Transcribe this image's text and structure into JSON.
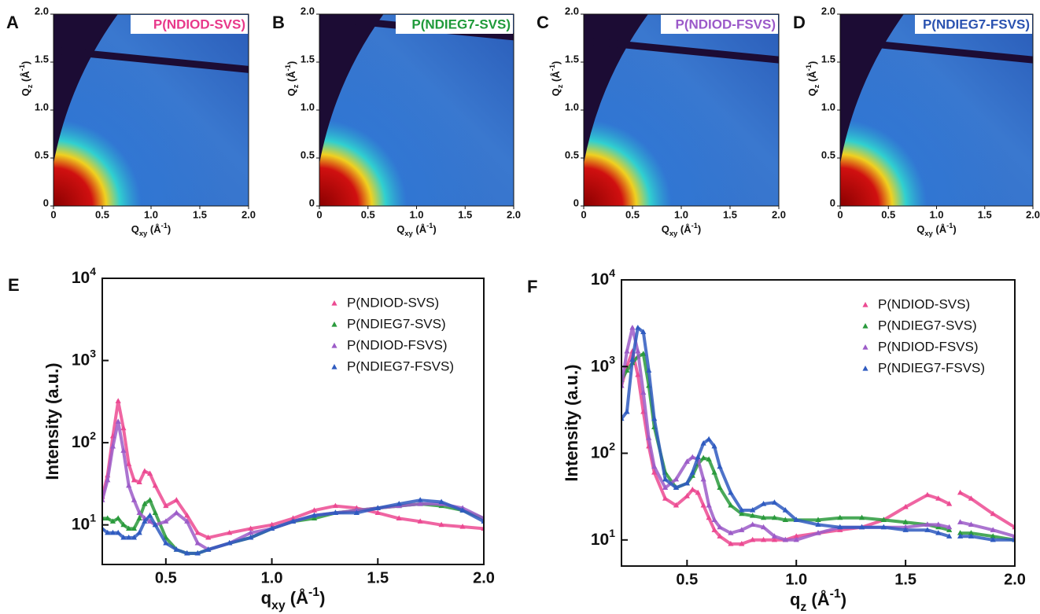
{
  "chart_data": [
    {
      "type": "image",
      "panel_label": "A",
      "title": "P(NDIOD-SVS)",
      "title_color": "#e8388a",
      "x_label": [
        "Q",
        "xy",
        " (Å",
        "-1",
        ")"
      ],
      "y_label": [
        "Q",
        "z",
        " (Å",
        "-1",
        ")"
      ],
      "xlim": [
        0,
        2
      ],
      "ylim": [
        0,
        2
      ],
      "xticks": [
        0,
        0.5,
        {
          "value": 1,
          "label": "1.0"
        },
        1.5,
        {
          "value": 2,
          "label": "2.0"
        }
      ],
      "yticks": [
        0,
        0.5,
        {
          "value": 1,
          "label": "1.0"
        },
        1.5,
        {
          "value": 2,
          "label": "2.0"
        }
      ]
    },
    {
      "type": "image",
      "panel_label": "B",
      "title": "P(NDIEG7-SVS)",
      "title_color": "#1f9a3a",
      "x_label": [
        "Q",
        "xy",
        " (Å",
        "-1",
        ")"
      ],
      "y_label": [
        "Q",
        "z",
        " (Å",
        "-1",
        ")"
      ],
      "xlim": [
        0,
        2
      ],
      "ylim": [
        0,
        2
      ],
      "xticks": [
        0,
        0.5,
        {
          "value": 1,
          "label": "1.0"
        },
        1.5,
        {
          "value": 2,
          "label": "2.0"
        }
      ],
      "yticks": [
        0,
        0.5,
        {
          "value": 1,
          "label": "1.0"
        },
        1.5,
        {
          "value": 2,
          "label": "2.0"
        }
      ]
    },
    {
      "type": "image",
      "panel_label": "C",
      "title": "P(NDIOD-FSVS)",
      "title_color": "#9b59c9",
      "x_label": [
        "Q",
        "xy",
        " (Å",
        "-1",
        ")"
      ],
      "y_label": [
        "Q",
        "z",
        " (Å",
        "-1",
        ")"
      ],
      "xlim": [
        0,
        2
      ],
      "ylim": [
        0,
        2
      ],
      "xticks": [
        0,
        0.5,
        {
          "value": 1,
          "label": "1.0"
        },
        1.5,
        {
          "value": 2,
          "label": "2.0"
        }
      ],
      "yticks": [
        0,
        0.5,
        {
          "value": 1,
          "label": "1.0"
        },
        1.5,
        {
          "value": 2,
          "label": "2.0"
        }
      ]
    },
    {
      "type": "image",
      "panel_label": "D",
      "title": "P(NDIEG7-FSVS)",
      "title_color": "#2a52b0",
      "x_label": [
        "Q",
        "xy",
        " (Å",
        "-1",
        ")"
      ],
      "y_label": [
        "Q",
        "z",
        " (Å",
        "-1",
        ")"
      ],
      "xlim": [
        0,
        2
      ],
      "ylim": [
        0,
        2
      ],
      "xticks": [
        0,
        0.5,
        {
          "value": 1,
          "label": "1.0"
        },
        1.5,
        {
          "value": 2,
          "label": "2.0"
        }
      ],
      "yticks": [
        0,
        0.5,
        {
          "value": 1,
          "label": "1.0"
        },
        1.5,
        {
          "value": 2,
          "label": "2.0"
        }
      ]
    },
    {
      "type": "scatter",
      "panel_label": "E",
      "log_y": true,
      "legend": "upper right",
      "x_label": [
        "q",
        "xy",
        " (Å",
        "-1",
        ")"
      ],
      "y_label": "Intensity (a.u.)",
      "xlim": [
        0.2,
        2.0
      ],
      "ylim": [
        3.3,
        10000
      ],
      "xticks": [
        0.5,
        {
          "value": 1,
          "label": "1.0"
        },
        1.5,
        {
          "value": 2,
          "label": "2.0"
        }
      ],
      "yticks": [
        {
          "value": 10,
          "label": [
            "10",
            "1"
          ]
        },
        {
          "value": 100,
          "label": [
            "10",
            "2"
          ]
        },
        {
          "value": 1000,
          "label": [
            "10",
            "3"
          ]
        },
        {
          "value": 10000,
          "label": [
            "10",
            "4"
          ]
        }
      ],
      "x": [
        0.2,
        0.225,
        0.25,
        0.275,
        0.3,
        0.325,
        0.35,
        0.375,
        0.4,
        0.425,
        0.45,
        0.5,
        0.55,
        0.6,
        0.65,
        0.7,
        0.8,
        0.9,
        1.0,
        1.1,
        1.2,
        1.3,
        1.4,
        1.5,
        1.6,
        1.7,
        1.8,
        1.9,
        2.0
      ],
      "series": [
        {
          "name": "P(NDIOD-SVS)",
          "color": "#ec4a92",
          "values": [
            22,
            40,
            120,
            320,
            150,
            55,
            35,
            33,
            45,
            42,
            30,
            17,
            20,
            13,
            8,
            7,
            8,
            9,
            10,
            12,
            15,
            17,
            16,
            14,
            12,
            11,
            10,
            9.5,
            9
          ]
        },
        {
          "name": "P(NDIEG7-SVS)",
          "color": "#2a9a3c",
          "values": [
            12,
            12,
            11,
            12,
            10,
            9,
            9,
            12,
            18,
            20,
            14,
            7,
            5,
            4.5,
            4.5,
            5,
            6,
            7,
            9,
            11,
            12,
            14,
            15,
            16,
            17,
            18,
            17,
            15,
            12
          ]
        },
        {
          "name": "P(NDIOD-FSVS)",
          "color": "#9c5cc8",
          "values": [
            20,
            35,
            90,
            180,
            80,
            30,
            20,
            14,
            12,
            11,
            10,
            11,
            14,
            11,
            6,
            5,
            6,
            8,
            9,
            11,
            13,
            14,
            15,
            16,
            17,
            18,
            18,
            16,
            12
          ]
        },
        {
          "name": "P(NDIEG7-FSVS)",
          "color": "#2f5bc0",
          "values": [
            9,
            8,
            8,
            8,
            7,
            7,
            7,
            8,
            11,
            13,
            10,
            6,
            5,
            4.5,
            4.5,
            5,
            6,
            7,
            9,
            11,
            13,
            14,
            14,
            16,
            18,
            20,
            19,
            15,
            11
          ]
        }
      ]
    },
    {
      "type": "scatter",
      "panel_label": "F",
      "log_y": true,
      "legend": "upper right",
      "x_label": [
        "q",
        "z",
        " (Å",
        "-1",
        ")"
      ],
      "y_label": "Intensity (a.u.)",
      "xlim": [
        0.2,
        2.0
      ],
      "ylim": [
        5,
        10000
      ],
      "xticks": [
        0.5,
        {
          "value": 1,
          "label": "1.0"
        },
        1.5,
        {
          "value": 2,
          "label": "2.0"
        }
      ],
      "yticks": [
        {
          "value": 10,
          "label": [
            "10",
            "1"
          ]
        },
        {
          "value": 100,
          "label": [
            "10",
            "2"
          ]
        },
        {
          "value": 1000,
          "label": [
            "10",
            "3"
          ]
        },
        {
          "value": 10000,
          "label": [
            "10",
            "4"
          ]
        }
      ],
      "x": [
        0.2,
        0.225,
        0.25,
        0.275,
        0.3,
        0.325,
        0.35,
        0.4,
        0.45,
        0.5,
        0.525,
        0.55,
        0.575,
        0.6,
        0.625,
        0.65,
        0.7,
        0.75,
        0.8,
        0.85,
        0.9,
        0.95,
        1.0,
        1.1,
        1.2,
        1.3,
        1.4,
        1.5,
        1.6,
        1.65,
        1.7,
        1.725,
        1.75,
        1.8,
        1.9,
        2.0
      ],
      "series": [
        {
          "name": "P(NDIOD-SVS)",
          "color": "#ec4a92",
          "values": [
            600,
            1000,
            1500,
            800,
            300,
            120,
            60,
            30,
            25,
            32,
            38,
            35,
            25,
            18,
            13,
            11,
            9,
            9,
            10,
            10,
            10,
            10,
            11,
            12,
            13,
            14,
            17,
            24,
            33,
            30,
            26,
            null,
            35,
            30,
            20,
            14
          ]
        },
        {
          "name": "P(NDIEG7-SVS)",
          "color": "#2a9a3c",
          "values": [
            700,
            900,
            1100,
            1300,
            1400,
            600,
            200,
            60,
            40,
            45,
            55,
            75,
            88,
            85,
            60,
            40,
            25,
            20,
            19,
            18,
            18,
            17,
            17,
            17,
            18,
            18,
            17,
            16,
            15,
            14,
            13,
            null,
            12,
            12,
            11,
            10
          ]
        },
        {
          "name": "P(NDIOD-FSVS)",
          "color": "#9c5cc8",
          "values": [
            600,
            1500,
            2800,
            1500,
            500,
            150,
            70,
            40,
            50,
            80,
            90,
            85,
            50,
            25,
            17,
            14,
            12,
            13,
            15,
            14,
            11,
            10,
            10,
            12,
            14,
            14,
            14,
            14,
            15,
            15,
            14,
            null,
            16,
            15,
            13,
            11
          ]
        },
        {
          "name": "P(NDIEG7-FSVS)",
          "color": "#2f5bc0",
          "values": [
            250,
            300,
            1200,
            2800,
            2500,
            900,
            250,
            50,
            40,
            45,
            60,
            90,
            130,
            145,
            120,
            70,
            35,
            22,
            22,
            26,
            27,
            22,
            17,
            15,
            14,
            14,
            14,
            13,
            13,
            12,
            11,
            null,
            11,
            11,
            10,
            10
          ]
        }
      ]
    }
  ]
}
